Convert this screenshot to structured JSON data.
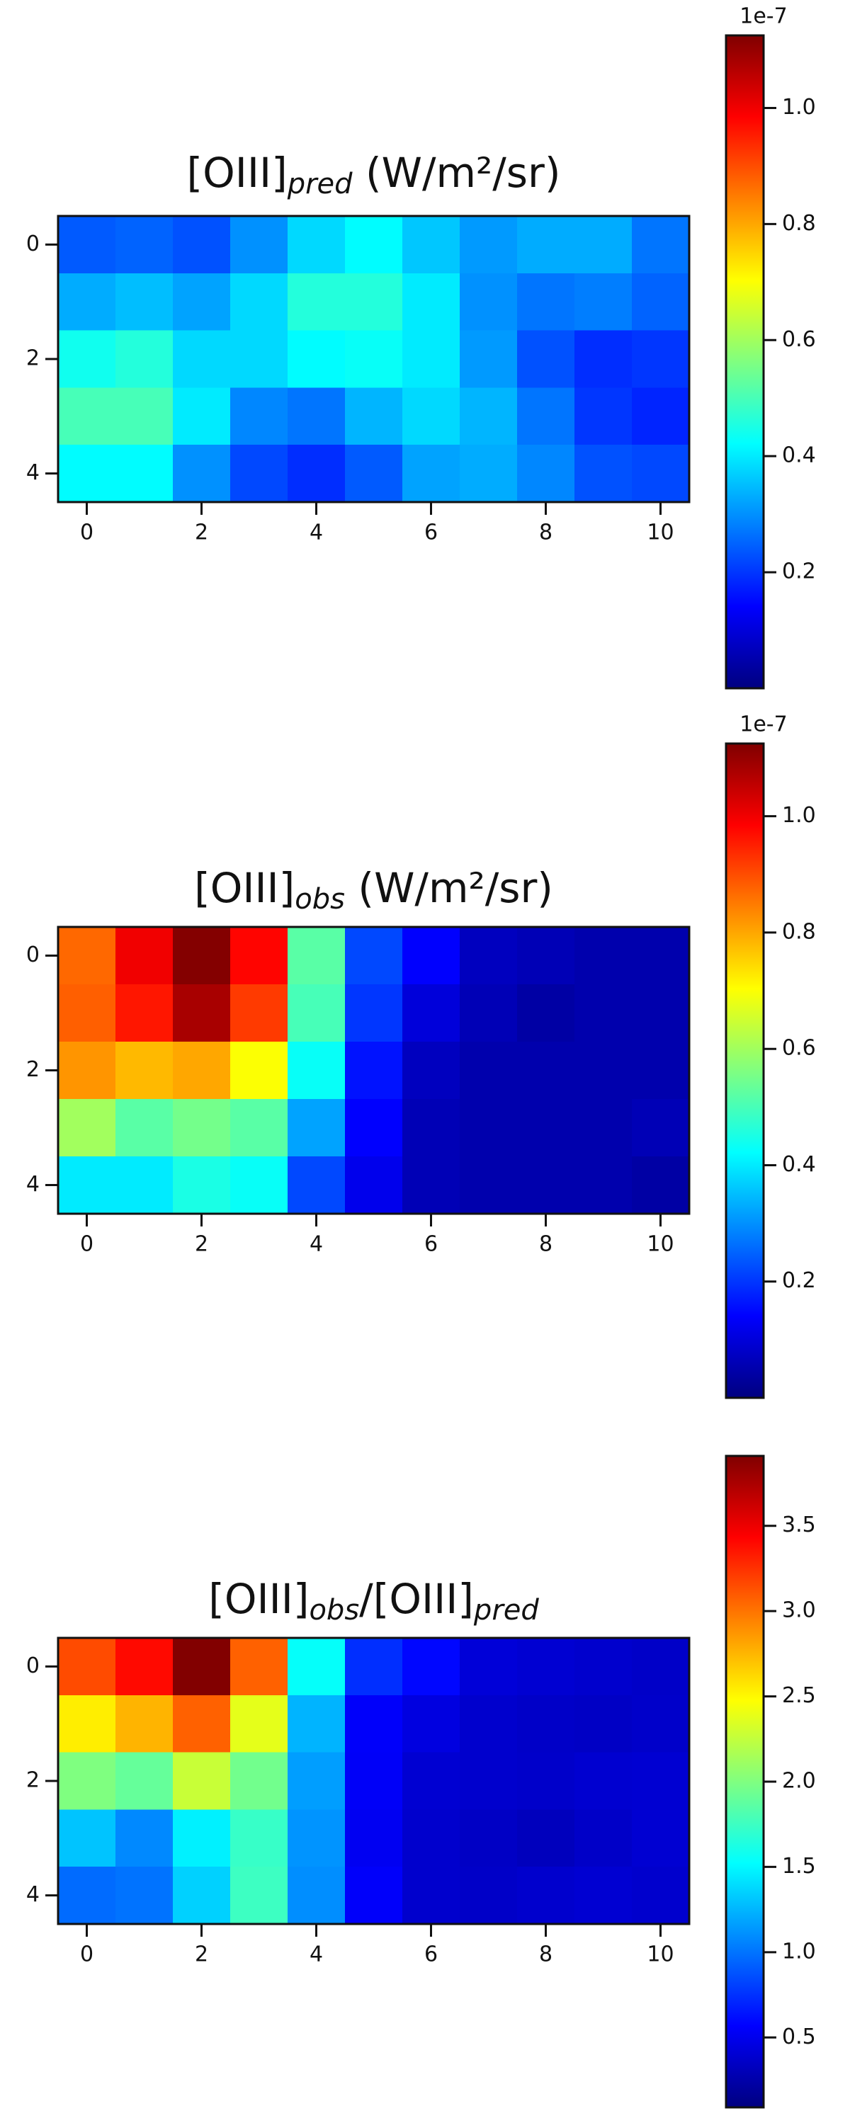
{
  "chart_data": [
    {
      "type": "heatmap",
      "title_parts": [
        {
          "text": "[OIII]"
        },
        {
          "text": "pred",
          "style": "subscript"
        },
        {
          "text": " (W/m²/sr)"
        }
      ],
      "colormap": "jet",
      "values": [
        [
          0.24,
          0.25,
          0.23,
          0.3,
          0.38,
          0.42,
          0.36,
          0.31,
          0.33,
          0.33,
          0.27
        ],
        [
          0.33,
          0.35,
          0.32,
          0.38,
          0.46,
          0.46,
          0.4,
          0.3,
          0.27,
          0.28,
          0.25
        ],
        [
          0.44,
          0.46,
          0.38,
          0.38,
          0.42,
          0.43,
          0.4,
          0.31,
          0.23,
          0.19,
          0.2
        ],
        [
          0.5,
          0.5,
          0.4,
          0.29,
          0.27,
          0.34,
          0.38,
          0.34,
          0.27,
          0.2,
          0.18
        ],
        [
          0.42,
          0.42,
          0.3,
          0.22,
          0.19,
          0.24,
          0.32,
          0.33,
          0.29,
          0.23,
          0.22
        ]
      ],
      "xlim": [
        -0.5,
        10.5
      ],
      "xticks": [
        0,
        2,
        4,
        6,
        8,
        10
      ],
      "ylim": [
        4.5,
        -0.5
      ],
      "yticks": [
        0,
        2,
        4
      ],
      "clim": [
        0.0,
        1.125
      ],
      "cticks": [
        0.2,
        0.4,
        0.6,
        0.8,
        {
          "value": 1.0,
          "label": "1.0"
        }
      ],
      "offset_text": "1e-7"
    },
    {
      "type": "heatmap",
      "title_parts": [
        {
          "text": "[OIII]"
        },
        {
          "text": "obs",
          "style": "subscript"
        },
        {
          "text": " (W/m²/sr)"
        }
      ],
      "colormap": "jet",
      "values": [
        [
          0.87,
          1.0,
          1.12,
          0.98,
          0.52,
          0.22,
          0.14,
          0.07,
          0.06,
          0.05,
          0.05
        ],
        [
          0.88,
          0.96,
          1.08,
          0.92,
          0.5,
          0.2,
          0.1,
          0.06,
          0.04,
          0.05,
          0.05
        ],
        [
          0.82,
          0.78,
          0.8,
          0.7,
          0.43,
          0.16,
          0.07,
          0.05,
          0.05,
          0.05,
          0.05
        ],
        [
          0.6,
          0.52,
          0.55,
          0.52,
          0.32,
          0.14,
          0.06,
          0.05,
          0.05,
          0.05,
          0.06
        ],
        [
          0.4,
          0.4,
          0.45,
          0.43,
          0.22,
          0.12,
          0.06,
          0.05,
          0.05,
          0.05,
          0.04
        ]
      ],
      "xlim": [
        -0.5,
        10.5
      ],
      "xticks": [
        0,
        2,
        4,
        6,
        8,
        10
      ],
      "ylim": [
        4.5,
        -0.5
      ],
      "yticks": [
        0,
        2,
        4
      ],
      "clim": [
        0.0,
        1.125
      ],
      "cticks": [
        0.2,
        0.4,
        0.6,
        0.8,
        {
          "value": 1.0,
          "label": "1.0"
        }
      ],
      "offset_text": "1e-7"
    },
    {
      "type": "heatmap",
      "title_parts": [
        {
          "text": "[OIII]"
        },
        {
          "text": "obs",
          "style": "subscript"
        },
        {
          "text": "/[OIII]"
        },
        {
          "text": "pred",
          "style": "subscript"
        }
      ],
      "colormap": "jet",
      "values": [
        [
          3.15,
          3.4,
          3.9,
          3.07,
          1.54,
          0.74,
          0.59,
          0.42,
          0.4,
          0.38,
          0.36
        ],
        [
          2.54,
          2.76,
          3.07,
          2.38,
          1.24,
          0.55,
          0.45,
          0.38,
          0.36,
          0.35,
          0.37
        ],
        [
          2.0,
          1.9,
          2.27,
          1.95,
          1.16,
          0.54,
          0.4,
          0.38,
          0.37,
          0.39,
          0.4
        ],
        [
          1.3,
          1.08,
          1.47,
          1.73,
          1.12,
          0.52,
          0.38,
          0.35,
          0.32,
          0.36,
          0.4
        ],
        [
          0.97,
          1.0,
          1.35,
          1.75,
          1.1,
          0.55,
          0.38,
          0.36,
          0.38,
          0.4,
          0.38
        ]
      ],
      "xlim": [
        -0.5,
        10.5
      ],
      "xticks": [
        0,
        2,
        4,
        6,
        8,
        10
      ],
      "ylim": [
        4.5,
        -0.5
      ],
      "yticks": [
        0,
        2,
        4
      ],
      "clim": [
        0.09,
        3.91
      ],
      "cticks": [
        0.5,
        {
          "value": 1.0,
          "label": "1.0"
        },
        1.5,
        {
          "value": 2.0,
          "label": "2.0"
        },
        2.5,
        {
          "value": 3.0,
          "label": "3.0"
        },
        3.5
      ]
    }
  ]
}
